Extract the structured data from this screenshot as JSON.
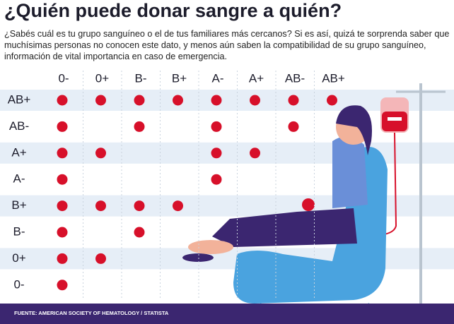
{
  "title": "¿Quién puede donar sangre a quién?",
  "intro": "¿Sabés cuál es tu grupo sanguíneo o el de tus familiares más cercanos? Si es así, quizá te sorprenda saber que muchísimas personas no conocen este dato, y menos aún saben la compatibilidad de su grupo sanguíneo, información de vital importancia en caso de emergencia.",
  "table": {
    "columns": [
      "0-",
      "0+",
      "B-",
      "B+",
      "A-",
      "A+",
      "AB-",
      "AB+"
    ],
    "dot_color": "#d7102a",
    "rows": [
      {
        "label": "AB+",
        "compatible": [
          true,
          true,
          true,
          true,
          true,
          true,
          true,
          true
        ]
      },
      {
        "label": "AB-",
        "compatible": [
          true,
          false,
          true,
          false,
          true,
          false,
          true,
          false
        ]
      },
      {
        "label": "A+",
        "compatible": [
          true,
          true,
          false,
          false,
          true,
          true,
          false,
          false
        ]
      },
      {
        "label": "A-",
        "compatible": [
          true,
          false,
          false,
          false,
          true,
          false,
          false,
          false
        ]
      },
      {
        "label": "B+",
        "compatible": [
          true,
          true,
          true,
          true,
          false,
          false,
          false,
          false
        ]
      },
      {
        "label": "B-",
        "compatible": [
          true,
          false,
          true,
          false,
          false,
          false,
          false,
          false
        ]
      },
      {
        "label": "0+",
        "compatible": [
          true,
          true,
          false,
          false,
          false,
          false,
          false,
          false
        ]
      },
      {
        "label": "0-",
        "compatible": [
          true,
          false,
          false,
          false,
          false,
          false,
          false,
          false
        ]
      }
    ]
  },
  "source": "FUENTE: AMERICAN SOCIETY OF HEMATOLOGY / STATISTA"
}
